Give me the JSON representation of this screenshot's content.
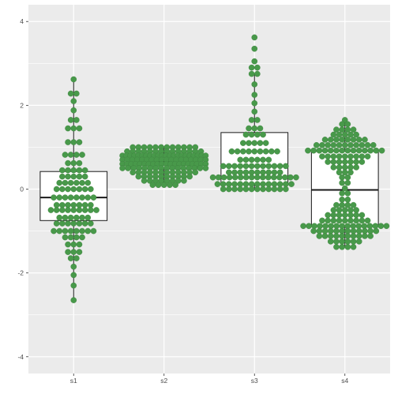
{
  "chart_data": {
    "type": "dotplot-box",
    "title": "",
    "xlabel": "",
    "ylabel": "",
    "categories": [
      "s1",
      "s2",
      "s3",
      "s4"
    ],
    "ylim": [
      -4.4,
      4.4
    ],
    "yticks": [
      -4,
      -2,
      0,
      2,
      4
    ],
    "ytick_labels": [
      "-4",
      "-2",
      "0",
      "2",
      "4"
    ],
    "grid": true,
    "colors": {
      "panel": "#ebebeb",
      "grid": "#ffffff",
      "dot": "#48994a",
      "dot_edge": "#3d7f3f",
      "box_fill": "#ffffff",
      "box_line": "#1a1a1a"
    },
    "boxes": [
      {
        "category": "s1",
        "q1": -0.75,
        "median": -0.2,
        "q3": 0.42,
        "whisker_low": -2.65,
        "whisker_high": 2.62
      },
      {
        "category": "s2",
        "q1": 0.48,
        "median": 0.65,
        "q3": 0.82,
        "whisker_low": 0.08,
        "whisker_high": 1.02
      },
      {
        "category": "s3",
        "q1": 0.12,
        "median": 0.55,
        "q3": 1.35,
        "whisker_low": -0.02,
        "whisker_high": 2.75
      },
      {
        "category": "s4",
        "q1": -0.88,
        "median": -0.02,
        "q3": 0.9,
        "whisker_low": -1.38,
        "whisker_high": 1.65
      }
    ],
    "dots": [
      {
        "category": "s1",
        "rows": [
          [
            2.62,
            1
          ],
          [
            2.28,
            2
          ],
          [
            2.1,
            1
          ],
          [
            1.88,
            1
          ],
          [
            1.65,
            2
          ],
          [
            1.45,
            3
          ],
          [
            1.12,
            3
          ],
          [
            0.82,
            4
          ],
          [
            0.62,
            3
          ],
          [
            0.45,
            5
          ],
          [
            0.3,
            5
          ],
          [
            0.15,
            6
          ],
          [
            0.0,
            7
          ],
          [
            -0.2,
            8
          ],
          [
            -0.38,
            7
          ],
          [
            -0.5,
            9
          ],
          [
            -0.68,
            6
          ],
          [
            -0.82,
            7
          ],
          [
            -1.0,
            8
          ],
          [
            -1.15,
            4
          ],
          [
            -1.32,
            3
          ],
          [
            -1.5,
            3
          ],
          [
            -1.65,
            2
          ],
          [
            -1.85,
            1
          ],
          [
            -2.05,
            1
          ],
          [
            -2.3,
            1
          ],
          [
            -2.65,
            1
          ]
        ]
      },
      {
        "category": "s2",
        "rows": [
          [
            1.0,
            12
          ],
          [
            0.9,
            14
          ],
          [
            0.8,
            22
          ],
          [
            0.7,
            18
          ],
          [
            0.6,
            20
          ],
          [
            0.5,
            16
          ],
          [
            0.4,
            12
          ],
          [
            0.3,
            10
          ],
          [
            0.2,
            8
          ],
          [
            0.1,
            5
          ]
        ]
      },
      {
        "category": "s3",
        "rows": [
          [
            3.62,
            1
          ],
          [
            3.35,
            1
          ],
          [
            3.05,
            1
          ],
          [
            2.9,
            2
          ],
          [
            2.75,
            2
          ],
          [
            2.5,
            1
          ],
          [
            2.25,
            1
          ],
          [
            2.05,
            1
          ],
          [
            1.85,
            1
          ],
          [
            1.65,
            2
          ],
          [
            1.45,
            3
          ],
          [
            1.3,
            4
          ],
          [
            1.1,
            5
          ],
          [
            0.9,
            9
          ],
          [
            0.7,
            6
          ],
          [
            0.55,
            12
          ],
          [
            0.4,
            10
          ],
          [
            0.28,
            16
          ],
          [
            0.12,
            14
          ],
          [
            0.0,
            12
          ]
        ]
      },
      {
        "category": "s4",
        "rows": [
          [
            1.65,
            1
          ],
          [
            1.55,
            2
          ],
          [
            1.42,
            4
          ],
          [
            1.3,
            5
          ],
          [
            1.18,
            8
          ],
          [
            1.05,
            11
          ],
          [
            0.92,
            14
          ],
          [
            0.78,
            9
          ],
          [
            0.65,
            7
          ],
          [
            0.52,
            5
          ],
          [
            0.4,
            3
          ],
          [
            0.28,
            2
          ],
          [
            0.15,
            2
          ],
          [
            0.02,
            1
          ],
          [
            -0.1,
            2
          ],
          [
            -0.25,
            2
          ],
          [
            -0.38,
            4
          ],
          [
            -0.5,
            5
          ],
          [
            -0.62,
            7
          ],
          [
            -0.75,
            9
          ],
          [
            -0.88,
            16
          ],
          [
            -1.0,
            12
          ],
          [
            -1.12,
            10
          ],
          [
            -1.25,
            6
          ],
          [
            -1.38,
            4
          ]
        ]
      }
    ]
  }
}
